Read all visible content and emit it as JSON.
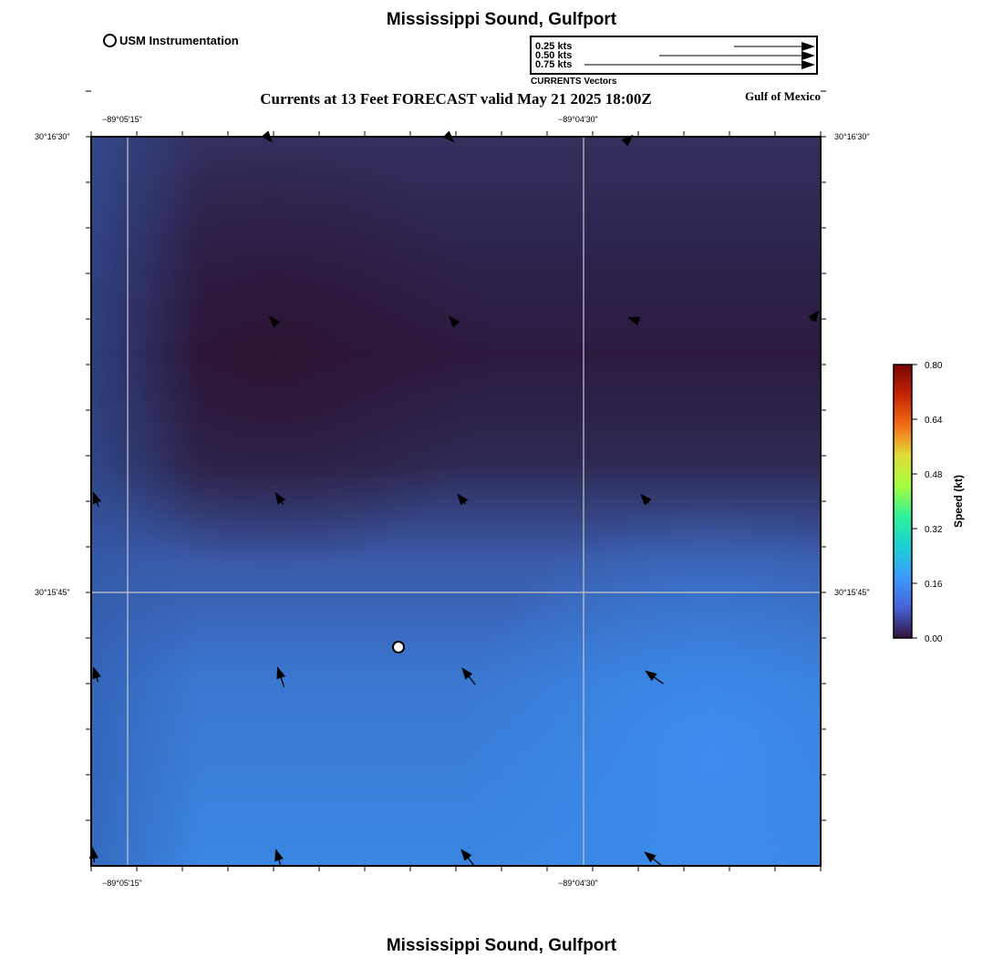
{
  "header": {
    "title": "Mississippi Sound, Gulfport",
    "subtitle": "Currents at 13 Feet FORECAST valid May 21 2025 18:00Z",
    "region": "Gulf of Mexico"
  },
  "footer": {
    "title": "Mississippi Sound, Gulfport"
  },
  "usm_legend": {
    "label": "USM Instrumentation"
  },
  "vector_legend": {
    "caption": "CURRENTS Vectors",
    "entries": [
      "0.25 kts",
      "0.50 kts",
      "0.75 kts"
    ]
  },
  "axes": {
    "lon_labels": [
      "−89°05'15\"",
      "−89°04'30\""
    ],
    "lat_labels": [
      "30°16'30\"",
      "30°15'45\""
    ]
  },
  "colorbar": {
    "label": "Speed (kt)",
    "ticks": [
      "0.80",
      "0.64",
      "0.48",
      "0.32",
      "0.16",
      "0.00"
    ],
    "colors": [
      "#7a0403",
      "#c42503",
      "#f46d15",
      "#e1dd37",
      "#a3fd3d",
      "#2ef19c",
      "#1bcfd4",
      "#3d9bfe",
      "#4662d7",
      "#30123b"
    ]
  },
  "colors": {
    "water_dark": "#2e1a40",
    "water_mid": "#2f3d78",
    "water_light": "#3a8ae8",
    "grid": "#c8c8c8"
  }
}
